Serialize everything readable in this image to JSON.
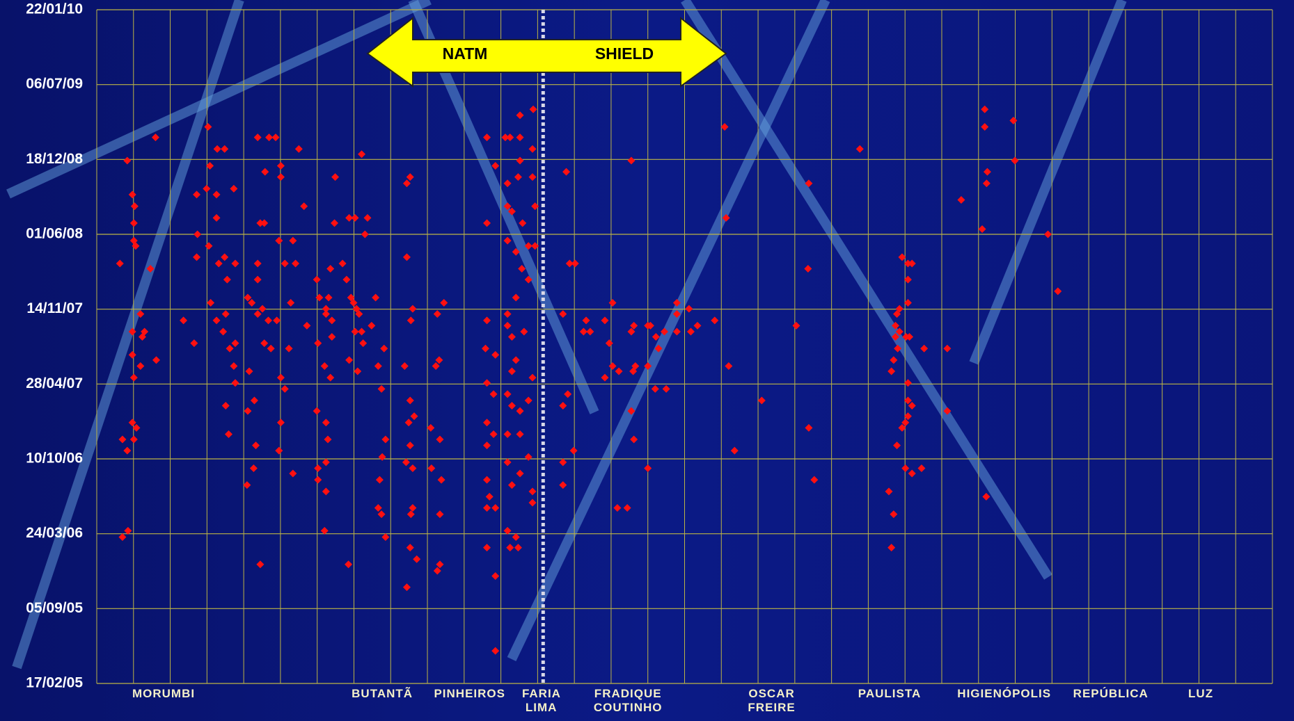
{
  "chart_data": {
    "type": "scatter",
    "color": "#ff1010",
    "xlim": [
      0,
      32
    ],
    "ylim": [
      "2005-02-17",
      "2010-01-22"
    ],
    "yticks": [
      {
        "value": "2005-02-17",
        "label": "17/02/05"
      },
      {
        "value": "2005-09-05",
        "label": "05/09/05"
      },
      {
        "value": "2006-03-24",
        "label": "24/03/06"
      },
      {
        "value": "2006-10-10",
        "label": "10/10/06"
      },
      {
        "value": "2007-04-28",
        "label": "28/04/07"
      },
      {
        "value": "2007-11-14",
        "label": "14/11/07"
      },
      {
        "value": "2008-06-01",
        "label": "01/06/08"
      },
      {
        "value": "2008-12-18",
        "label": "18/12/08"
      },
      {
        "value": "2009-07-06",
        "label": "06/07/09"
      },
      {
        "value": "2010-01-22",
        "label": "22/01/10"
      }
    ],
    "xticks": [
      {
        "value": 1.82,
        "label": "MORUMBI"
      },
      {
        "value": 7.77,
        "label": "BUTANTÃ"
      },
      {
        "value": 10.15,
        "label": "PINHEIROS"
      },
      {
        "value": 12.1,
        "label": "FARIA LIMA"
      },
      {
        "value": 14.46,
        "label": "FRADIQUE COUTINHO"
      },
      {
        "value": 18.37,
        "label": "OSCAR FREIRE"
      },
      {
        "value": 21.58,
        "label": "PAULISTA"
      },
      {
        "value": 24.7,
        "label": "HIGIENÓPOLIS"
      },
      {
        "value": 27.6,
        "label": "REPÚBLICA"
      },
      {
        "value": 30.05,
        "label": "LUZ"
      }
    ],
    "grid": true,
    "divider_x": 12.15,
    "annotations": [
      "NATM",
      "SHIELD"
    ],
    "x": [
      0.63,
      0.83,
      0.97,
      1.03,
      1.01,
      1.01,
      1.06,
      1.19,
      0.97,
      1.3,
      1.24,
      0.97,
      1.01,
      1.19,
      0.97,
      1.08,
      1.01,
      0.7,
      0.83,
      0.85,
      0.7,
      1.46,
      1.6,
      1.62,
      2.36,
      2.65,
      3.03,
      3.08,
      2.99,
      2.72,
      2.74,
      2.72,
      3.05,
      3.26,
      3.26,
      3.28,
      3.48,
      3.73,
      3.32,
      3.48,
      3.55,
      3.77,
      3.1,
      3.26,
      3.44,
      3.51,
      3.62,
      3.77,
      3.73,
      3.77,
      3.51,
      3.59,
      4.11,
      4.22,
      4.15,
      4.29,
      4.11,
      4.33,
      4.27,
      4.09,
      4.45,
      4.38,
      4.69,
      4.87,
      4.58,
      4.45,
      4.56,
      4.38,
      4.38,
      4.51,
      4.38,
      4.67,
      4.56,
      4.74,
      4.9,
      5.01,
      5.01,
      4.96,
      5.12,
      5.01,
      5.12,
      5.01,
      4.96,
      5.23,
      5.28,
      5.34,
      5.41,
      5.5,
      5.64,
      5.34,
      5.72,
      5.99,
      6.06,
      6.02,
      5.99,
      6.02,
      6.02,
      6.2,
      6.24,
      6.24,
      6.29,
      6.24,
      6.2,
      6.24,
      6.31,
      6.36,
      6.4,
      6.36,
      6.47,
      6.49,
      6.24,
      6.4,
      6.69,
      6.8,
      6.87,
      7.03,
      7.21,
      6.85,
      6.92,
      6.99,
      7.07,
      7.14,
      7.03,
      6.87,
      7.1,
      7.21,
      7.25,
      7.3,
      7.37,
      7.48,
      7.59,
      7.66,
      7.75,
      7.82,
      7.86,
      7.77,
      7.7,
      7.66,
      7.75,
      7.86,
      8.44,
      8.53,
      8.44,
      8.55,
      8.6,
      8.38,
      8.53,
      8.49,
      8.64,
      8.53,
      8.42,
      8.6,
      8.55,
      8.6,
      8.53,
      8.71,
      8.44,
      9.45,
      9.27,
      9.32,
      9.23,
      9.09,
      9.34,
      9.11,
      9.38,
      9.34,
      9.34,
      9.27,
      10.62,
      10.85,
      10.62,
      10.62,
      10.58,
      10.85,
      10.62,
      10.8,
      10.62,
      10.8,
      10.62,
      10.62,
      10.69,
      10.62,
      10.85,
      10.62,
      10.85,
      10.85,
      11.12,
      11.25,
      11.52,
      11.88,
      11.52,
      11.86,
      11.52,
      11.18,
      11.47,
      11.86,
      11.18,
      11.93,
      11.3,
      11.59,
      11.18,
      11.41,
      11.75,
      11.93,
      11.57,
      11.75,
      11.41,
      11.18,
      11.18,
      11.3,
      11.63,
      11.41,
      11.3,
      11.86,
      11.18,
      11.3,
      11.52,
      11.75,
      11.18,
      11.52,
      11.18,
      11.75,
      11.52,
      11.3,
      11.86,
      11.18,
      11.41,
      11.25,
      11.47,
      11.86,
      12.78,
      12.87,
      13.02,
      12.69,
      13.32,
      13.25,
      13.43,
      12.82,
      12.69,
      12.98,
      12.69,
      12.69,
      14.04,
      13.83,
      13.95,
      13.83,
      14.21,
      14.04,
      14.17,
      14.44,
      14.55,
      14.62,
      14.55,
      14.66,
      14.6,
      14.55,
      14.62,
      15.0,
      15.07,
      15.0,
      15.0,
      15.22,
      15.29,
      15.45,
      15.2,
      15.5,
      15.79,
      15.79,
      16.12,
      15.79,
      16.17,
      16.35,
      16.82,
      17.09,
      17.13,
      17.2,
      17.36,
      18.1,
      19.04,
      19.38,
      19.36,
      19.38,
      19.53,
      20.77,
      21.92,
      22.08,
      22.19,
      22.08,
      22.08,
      21.85,
      21.78,
      21.74,
      21.85,
      21.74,
      22.03,
      22.12,
      21.8,
      21.69,
      21.63,
      22.08,
      22.08,
      22.19,
      22.08,
      22.01,
      21.92,
      21.78,
      22.01,
      22.19,
      22.45,
      21.56,
      21.69,
      21.63,
      22.52,
      23.15,
      23.15,
      23.53,
      24.1,
      24.17,
      24.17,
      24.24,
      24.22,
      24.21,
      24.95,
      24.99,
      25.89,
      26.16
    ],
    "values": [
      "2008-03-15",
      "2008-12-15",
      "2008-09-15",
      "2008-08-15",
      "2008-07-01",
      "2008-05-15",
      "2008-05-01",
      "2007-11-01",
      "2007-09-15",
      "2007-09-15",
      "2007-09-01",
      "2007-07-15",
      "2007-05-15",
      "2007-06-15",
      "2007-01-15",
      "2007-01-01",
      "2006-12-01",
      "2006-12-01",
      "2006-11-01",
      "2006-04-01",
      "2006-03-15",
      "2008-03-01",
      "2009-02-15",
      "2007-07-01",
      "2007-10-15",
      "2007-08-15",
      "2009-03-15",
      "2008-12-01",
      "2008-10-01",
      "2008-09-15",
      "2008-06-01",
      "2008-04-01",
      "2008-05-01",
      "2008-07-15",
      "2008-09-15",
      "2009-01-15",
      "2009-01-15",
      "2008-10-01",
      "2008-03-15",
      "2008-04-01",
      "2008-02-01",
      "2008-03-15",
      "2007-12-01",
      "2007-10-15",
      "2007-09-15",
      "2007-11-01",
      "2007-08-01",
      "2007-08-15",
      "2007-06-15",
      "2007-05-01",
      "2007-03-01",
      "2006-12-15",
      "2007-12-15",
      "2007-12-01",
      "2007-06-01",
      "2007-03-15",
      "2007-02-15",
      "2006-11-15",
      "2006-09-15",
      "2006-08-01",
      "2006-01-01",
      "2009-02-15",
      "2009-02-15",
      "2009-02-15",
      "2008-11-15",
      "2008-07-01",
      "2008-07-01",
      "2008-03-15",
      "2008-02-01",
      "2007-11-15",
      "2007-11-01",
      "2007-10-15",
      "2007-08-15",
      "2007-08-01",
      "2007-10-15",
      "2008-12-01",
      "2008-11-01",
      "2008-05-15",
      "2008-03-15",
      "2007-05-15",
      "2007-04-15",
      "2007-01-15",
      "2006-11-01",
      "2007-08-01",
      "2007-12-01",
      "2008-05-15",
      "2008-03-15",
      "2009-01-15",
      "2008-08-15",
      "2006-09-01",
      "2007-10-01",
      "2008-02-01",
      "2007-12-15",
      "2007-08-15",
      "2007-02-15",
      "2006-09-15",
      "2006-08-15",
      "2006-04-01",
      "2006-07-15",
      "2006-10-01",
      "2006-12-01",
      "2007-01-15",
      "2007-06-15",
      "2007-11-15",
      "2007-12-15",
      "2008-03-01",
      "2007-09-01",
      "2007-05-15",
      "2008-07-01",
      "2008-11-01",
      "2007-11-01",
      "2007-10-15",
      "2008-03-15",
      "2008-02-01",
      "2008-07-15",
      "2008-07-15",
      "2009-01-01",
      "2006-01-01",
      "2007-12-15",
      "2007-12-01",
      "2007-11-15",
      "2007-11-01",
      "2007-09-15",
      "2007-07-01",
      "2007-06-01",
      "2007-09-15",
      "2007-08-15",
      "2008-06-01",
      "2008-07-15",
      "2007-10-01",
      "2007-12-15",
      "2007-06-15",
      "2007-04-15",
      "2007-08-01",
      "2006-12-01",
      "2006-10-15",
      "2006-08-15",
      "2006-06-01",
      "2006-05-15",
      "2006-03-15",
      "2008-10-15",
      "2008-11-01",
      "2008-04-01",
      "2007-10-15",
      "2007-11-15",
      "2007-06-15",
      "2007-03-15",
      "2007-01-15",
      "2007-02-01",
      "2006-11-15",
      "2006-10-01",
      "2006-09-15",
      "2006-05-15",
      "2006-06-01",
      "2006-02-15",
      "2006-01-15",
      "2005-11-01",
      "2007-12-01",
      "2007-11-01",
      "2007-07-01",
      "2007-06-15",
      "2007-01-01",
      "2006-12-01",
      "2006-09-15",
      "2006-08-15",
      "2006-05-15",
      "2006-01-01",
      "2005-12-15",
      "2009-02-15",
      "2008-12-01",
      "2008-07-01",
      "2007-10-15",
      "2007-08-01",
      "2007-07-15",
      "2007-05-01",
      "2007-04-01",
      "2007-01-15",
      "2006-12-15",
      "2006-11-15",
      "2006-08-15",
      "2006-07-01",
      "2006-06-01",
      "2006-06-01",
      "2006-02-15",
      "2005-12-01",
      "2005-05-15",
      "2009-02-15",
      "2009-02-15",
      "2009-04-15",
      "2009-05-01",
      "2009-02-15",
      "2009-01-15",
      "2008-12-15",
      "2008-10-15",
      "2008-11-01",
      "2008-11-01",
      "2008-08-15",
      "2008-08-15",
      "2008-08-01",
      "2008-07-01",
      "2008-05-15",
      "2008-04-15",
      "2008-05-01",
      "2008-05-01",
      "2008-03-01",
      "2008-02-01",
      "2007-12-15",
      "2007-11-01",
      "2007-10-01",
      "2007-09-01",
      "2007-09-15",
      "2007-07-01",
      "2007-06-01",
      "2007-05-15",
      "2007-04-01",
      "2007-03-01",
      "2007-02-15",
      "2007-03-15",
      "2006-12-15",
      "2006-12-15",
      "2006-10-01",
      "2006-10-15",
      "2006-09-01",
      "2006-08-01",
      "2006-06-15",
      "2006-04-01",
      "2006-03-15",
      "2006-02-15",
      "2006-02-15",
      "2006-07-15",
      "2008-11-15",
      "2008-03-15",
      "2008-03-15",
      "2007-11-01",
      "2007-10-15",
      "2007-09-15",
      "2007-09-15",
      "2007-04-01",
      "2007-03-01",
      "2006-11-01",
      "2006-10-01",
      "2006-08-01",
      "2007-12-01",
      "2007-10-15",
      "2007-08-15",
      "2007-05-15",
      "2007-06-01",
      "2007-06-15",
      "2006-06-01",
      "2006-06-01",
      "2008-12-15",
      "2007-10-01",
      "2007-09-15",
      "2007-06-15",
      "2007-06-01",
      "2007-02-15",
      "2006-12-01",
      "2007-10-01",
      "2007-10-01",
      "2007-06-15",
      "2006-09-15",
      "2007-09-01",
      "2007-08-01",
      "2007-09-15",
      "2007-04-15",
      "2007-04-15",
      "2007-12-01",
      "2007-11-01",
      "2007-11-15",
      "2007-09-15",
      "2007-09-15",
      "2007-10-01",
      "2007-10-15",
      "2009-03-15",
      "2008-07-15",
      "2007-06-15",
      "2006-11-01",
      "2007-03-15",
      "2007-10-01",
      "2008-10-15",
      "2008-03-01",
      "2007-01-01",
      "2006-08-15",
      "2009-01-15",
      "2008-04-01",
      "2008-03-15",
      "2008-03-15",
      "2008-02-01",
      "2007-12-01",
      "2007-11-15",
      "2007-11-01",
      "2007-10-01",
      "2007-09-15",
      "2007-09-01",
      "2007-09-01",
      "2007-09-01",
      "2007-08-01",
      "2007-07-01",
      "2007-06-01",
      "2007-05-01",
      "2007-03-15",
      "2007-03-01",
      "2007-02-01",
      "2007-01-15",
      "2007-01-01",
      "2006-11-15",
      "2006-09-15",
      "2006-09-01",
      "2006-09-15",
      "2006-07-15",
      "2006-05-15",
      "2006-02-15",
      "2007-08-01",
      "2007-08-01",
      "2007-02-15",
      "2008-09-01",
      "2008-06-15",
      "2009-05-01",
      "2009-03-15",
      "2008-11-15",
      "2008-10-15",
      "2006-07-01",
      "2009-04-01",
      "2008-12-15",
      "2008-06-01",
      "2008-01-01"
    ]
  }
}
